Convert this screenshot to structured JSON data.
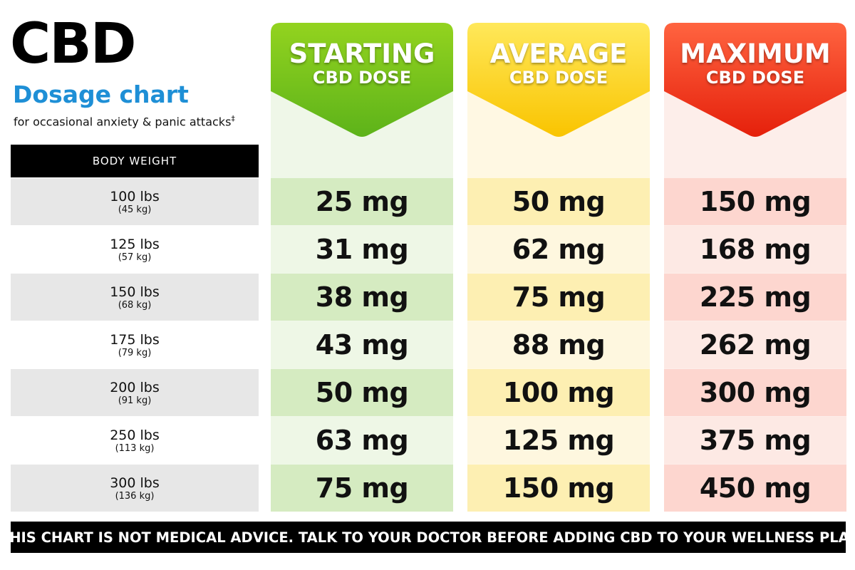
{
  "header": {
    "title": "CBD",
    "subtitle": "Dosage chart",
    "note": "for occasional anxiety & panic attacks",
    "note_mark": "‡"
  },
  "table": {
    "weight_header": "BODY WEIGHT",
    "columns": [
      {
        "title": "STARTING",
        "subtitle": "CBD DOSE"
      },
      {
        "title": "AVERAGE",
        "subtitle": "CBD DOSE"
      },
      {
        "title": "MAXIMUM",
        "subtitle": "CBD DOSE"
      }
    ],
    "rows": [
      {
        "lbs": "100 lbs",
        "kg": "(45 kg)",
        "doses": [
          "25 mg",
          "50 mg",
          "150 mg"
        ]
      },
      {
        "lbs": "125 lbs",
        "kg": "(57 kg)",
        "doses": [
          "31 mg",
          "62 mg",
          "168 mg"
        ]
      },
      {
        "lbs": "150 lbs",
        "kg": "(68 kg)",
        "doses": [
          "38 mg",
          "75 mg",
          "225 mg"
        ]
      },
      {
        "lbs": "175 lbs",
        "kg": "(79 kg)",
        "doses": [
          "43 mg",
          "88 mg",
          "262 mg"
        ]
      },
      {
        "lbs": "200 lbs",
        "kg": "(91 kg)",
        "doses": [
          "50 mg",
          "100 mg",
          "300 mg"
        ]
      },
      {
        "lbs": "250 lbs",
        "kg": "(113 kg)",
        "doses": [
          "63 mg",
          "125 mg",
          "375 mg"
        ]
      },
      {
        "lbs": "300 lbs",
        "kg": "(136 kg)",
        "doses": [
          "75 mg",
          "150 mg",
          "450 mg"
        ]
      }
    ]
  },
  "footer": {
    "mark": "‡",
    "text": "THIS CHART IS NOT MEDICAL ADVICE. TALK TO YOUR DOCTOR BEFORE ADDING CBD TO YOUR WELLNESS PLAN"
  }
}
